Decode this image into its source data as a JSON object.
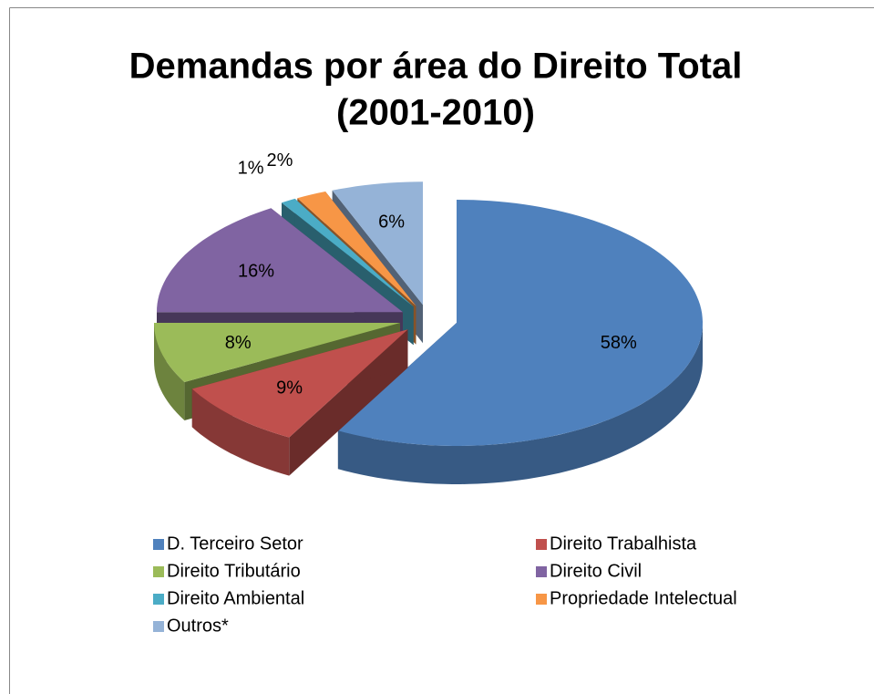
{
  "chart_data": {
    "type": "pie3d",
    "title": "Demandas por área do Direito Total",
    "subtitle": "(2001-2010)",
    "categories": [
      "D. Terceiro Setor",
      "Direito Trabalhista",
      "Direito Tributário",
      "Direito Civil",
      "Direito Ambiental",
      "Propriedade Intelectual",
      "Outros*"
    ],
    "values": [
      58,
      9,
      8,
      16,
      1,
      2,
      6
    ],
    "value_labels": [
      "58%",
      "9%",
      "8%",
      "16%",
      "1%",
      "2%",
      "6%"
    ],
    "colors": [
      "#4f81bd",
      "#c0504d",
      "#9bbb59",
      "#8064a2",
      "#4bacc6",
      "#f79646",
      "#95b3d7"
    ],
    "legend": "bottom"
  }
}
